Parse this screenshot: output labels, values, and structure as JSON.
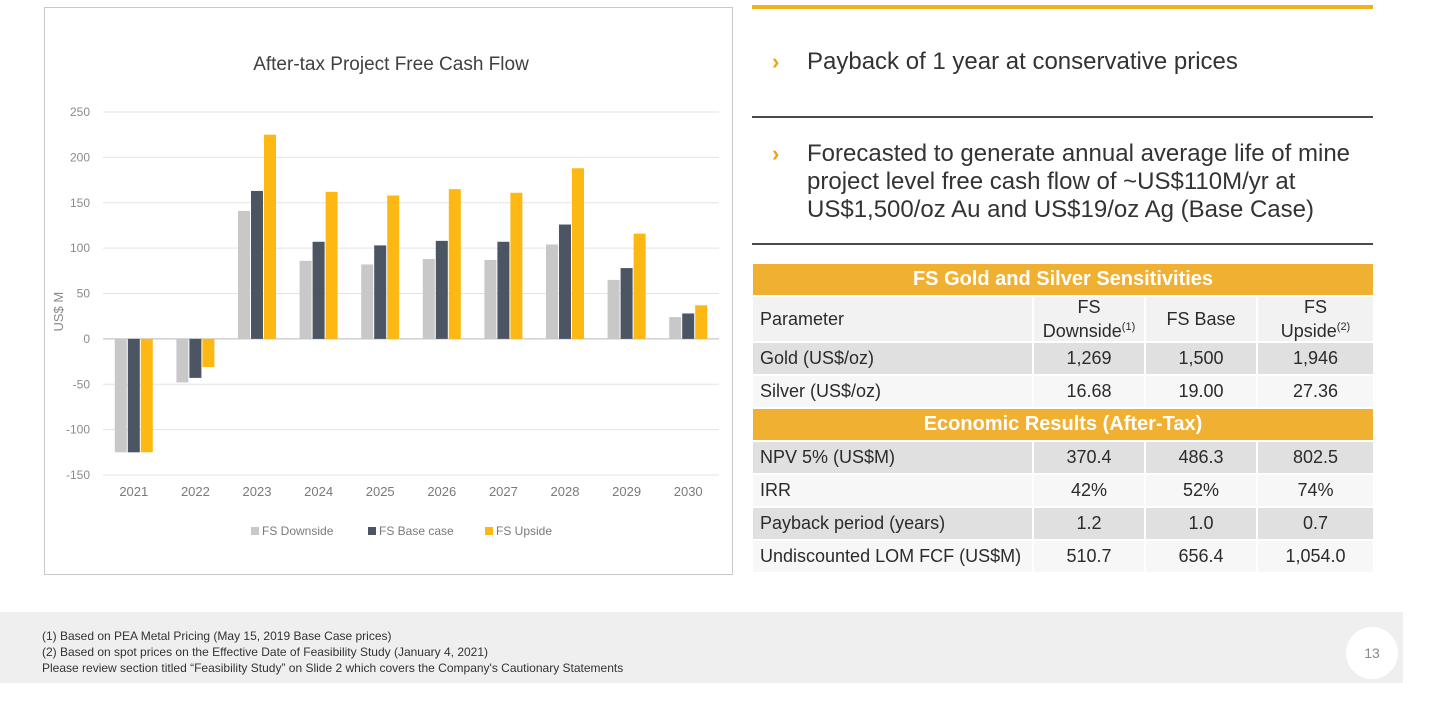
{
  "chart_data": {
    "type": "bar",
    "title": "After-tax Project Free Cash Flow",
    "ylabel": "US$ M",
    "xlabel": "",
    "ylim": [
      -150,
      250
    ],
    "yticks": [
      250,
      200,
      150,
      100,
      50,
      0,
      -50,
      -100,
      -150
    ],
    "grid": true,
    "legend_position": "bottom",
    "categories": [
      "2021",
      "2022",
      "2023",
      "2024",
      "2025",
      "2026",
      "2027",
      "2028",
      "2029",
      "2030"
    ],
    "series": [
      {
        "name": "FS  Downside",
        "color": "#c8c8c8",
        "values": [
          -125,
          -48,
          141,
          86,
          82,
          88,
          87,
          104,
          65,
          24
        ]
      },
      {
        "name": "FS Base case",
        "color": "#4b5563",
        "values": [
          -125,
          -43,
          163,
          107,
          103,
          108,
          107,
          126,
          78,
          28
        ]
      },
      {
        "name": "FS Upside",
        "color": "#fdb813",
        "values": [
          -125,
          -31,
          225,
          162,
          158,
          165,
          161,
          188,
          116,
          37
        ]
      }
    ]
  },
  "bullets": [
    {
      "lines": [
        "Payback of 1 year at conservative prices"
      ]
    },
    {
      "lines": [
        "Forecasted to generate annual average life of mine",
        "project level free cash flow of ~US$110M/yr at",
        "US$1,500/oz Au and US$19/oz Ag (Base Case)"
      ]
    }
  ],
  "table": {
    "title1": "FS Gold and Silver Sensitivities",
    "title2": "Economic Results (After-Tax)",
    "param_header": "Parameter",
    "col1_line1": "FS",
    "col1_line2": "Downside",
    "col1_sup": "(1)",
    "col2": "FS Base",
    "col3_line1": "FS",
    "col3_line2": "Upside",
    "col3_sup": "(2)",
    "rows1": [
      [
        "Gold (US$/oz)",
        "1,269",
        "1,500",
        "1,946"
      ],
      [
        "Silver (US$/oz)",
        "16.68",
        "19.00",
        "27.36"
      ]
    ],
    "rows2": [
      [
        "NPV 5% (US$M)",
        "370.4",
        "486.3",
        "802.5"
      ],
      [
        "IRR",
        "42%",
        "52%",
        "74%"
      ],
      [
        "Payback period (years)",
        "1.2",
        "1.0",
        "0.7"
      ],
      [
        "Undiscounted LOM FCF (US$M)",
        "510.7",
        "656.4",
        "1,054.0"
      ]
    ]
  },
  "footer": {
    "notes": [
      "(1) Based on PEA Metal Pricing (May 15, 2019 Base Case prices)",
      "(2) Based on spot prices on the Effective Date of Feasibility Study (January 4, 2021)",
      "Please review section titled “Feasibility Study” on Slide 2 which covers the Company's Cautionary Statements"
    ],
    "page_number": "13"
  },
  "colors": {
    "accent": "#f0b032",
    "gold": "#fdb813",
    "base": "#4b5563",
    "downside": "#c8c8c8"
  }
}
